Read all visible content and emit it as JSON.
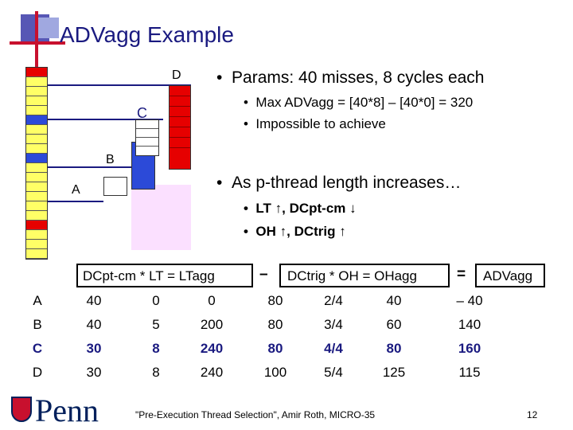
{
  "title": "ADVagg Example",
  "thread_labels": {
    "D": "D",
    "C": "C",
    "B": "B",
    "A": "A"
  },
  "bullets": {
    "params": "Params: 40 misses, 8 cycles each",
    "max_adv": "Max ADVagg = [40*8] – [40*0] = 320",
    "impossible": "Impossible to achieve",
    "as_pthread": "As p-thread length increases…",
    "lt": "LT ↑, DCpt-cm ↓",
    "oh": "OH ↑, DCtrig ↑"
  },
  "table": {
    "headers": {
      "col1": "DCpt-cm * LT = LTagg",
      "minus": "–",
      "col2": "DCtrig * OH = OHagg",
      "equals": "=",
      "adv": "ADVagg"
    },
    "rows": [
      {
        "label": "A",
        "dcpt": "40",
        "lt": "0",
        "ltagg": "0",
        "dctrig": "80",
        "oh": "2/4",
        "ohagg": "40",
        "adv": "– 40",
        "highlight": false
      },
      {
        "label": "B",
        "dcpt": "40",
        "lt": "5",
        "ltagg": "200",
        "dctrig": "80",
        "oh": "3/4",
        "ohagg": "60",
        "adv": "140",
        "highlight": false
      },
      {
        "label": "C",
        "dcpt": "30",
        "lt": "8",
        "ltagg": "240",
        "dctrig": "80",
        "oh": "4/4",
        "ohagg": "80",
        "adv": "160",
        "highlight": true
      },
      {
        "label": "D",
        "dcpt": "30",
        "lt": "8",
        "ltagg": "240",
        "dctrig": "100",
        "oh": "5/4",
        "ohagg": "125",
        "adv": "115",
        "highlight": false
      }
    ]
  },
  "footer": {
    "logo": "Penn",
    "citation": "\"Pre-Execution Thread Selection\", Amir Roth, MICRO-35",
    "page": "12"
  },
  "colors": {
    "title": "#1a1a80",
    "yellow": "#ffff66",
    "red": "#e60000",
    "blue": "#2c4ad8",
    "pink": "#fbe0ff",
    "navy": "#1a1a80"
  }
}
